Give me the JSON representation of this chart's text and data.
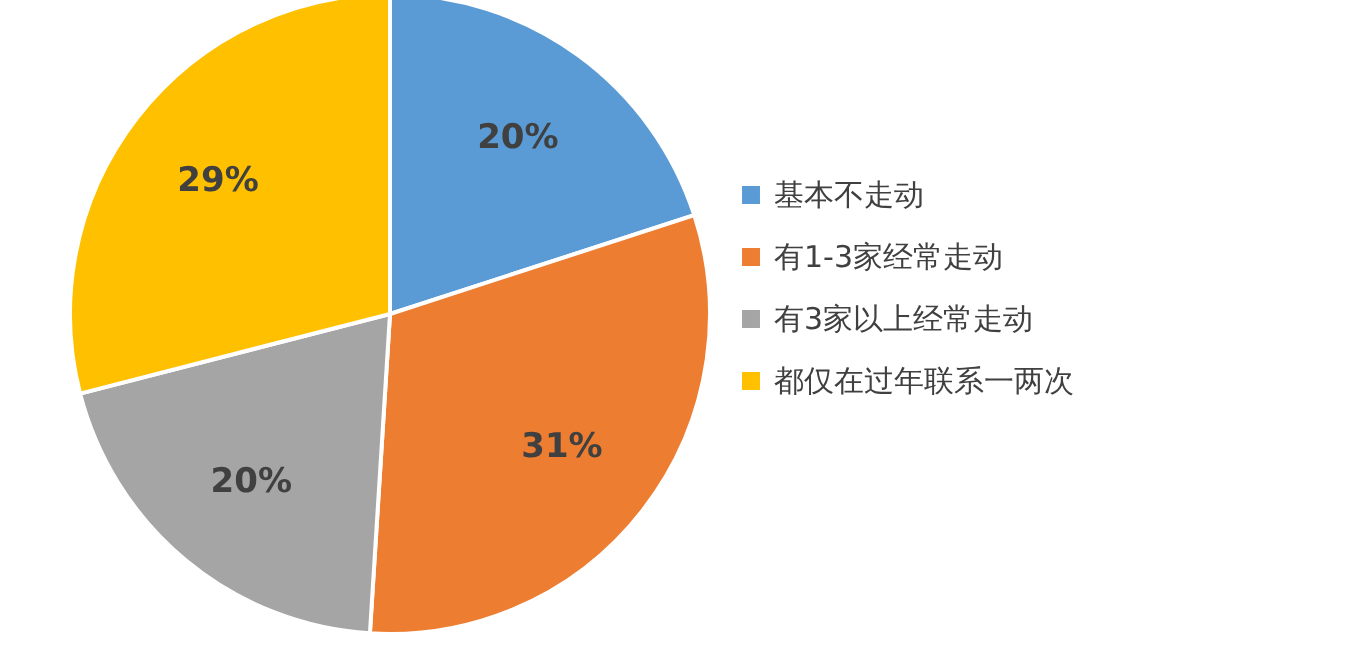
{
  "chart_data": {
    "type": "pie",
    "categories": [
      "基本不走动",
      "有1-3家经常走动",
      "有3家以上经常走动",
      "都仅在过年联系一两次"
    ],
    "values": [
      20,
      31,
      20,
      29
    ],
    "colors": [
      "#5b9bd5",
      "#ed7d31",
      "#a5a5a5",
      "#ffc000"
    ],
    "value_labels": [
      "20%",
      "31%",
      "20%",
      "29%"
    ],
    "legend": "right"
  }
}
